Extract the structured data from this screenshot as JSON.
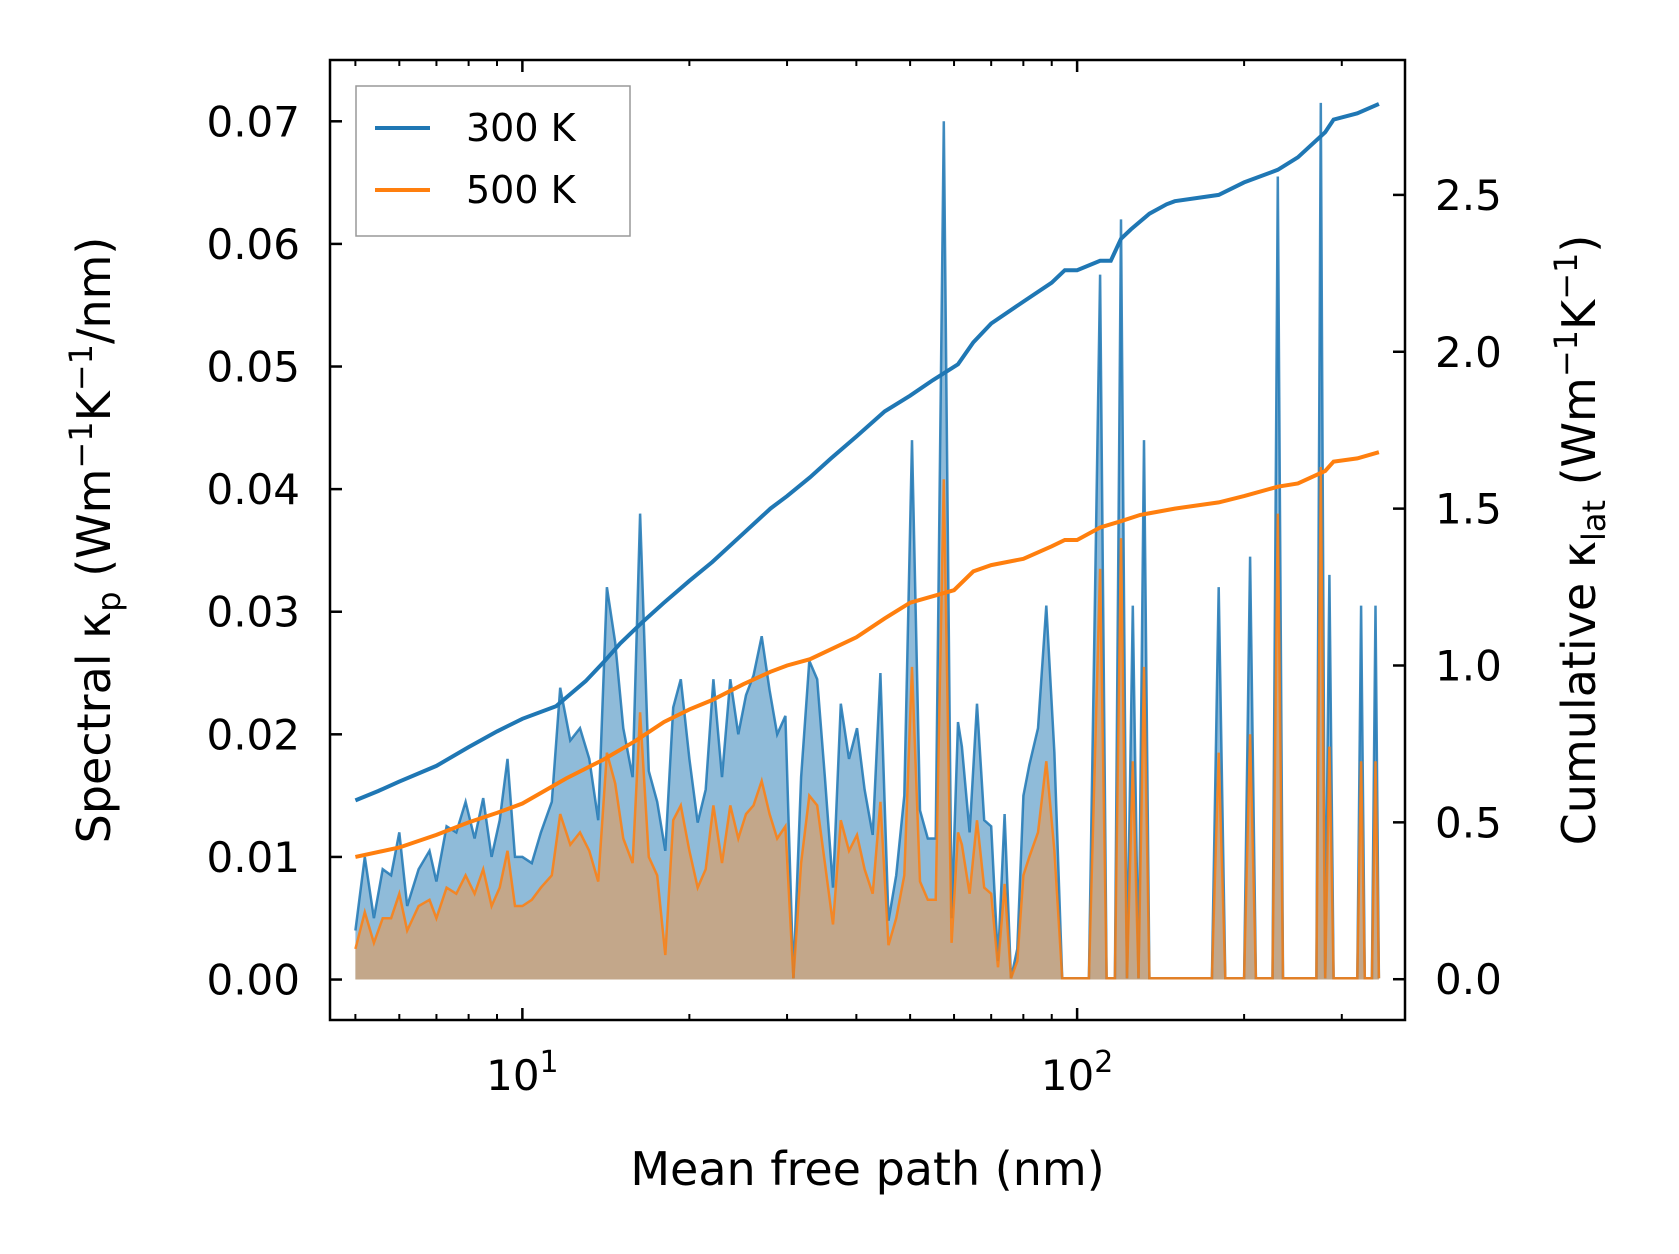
{
  "colors": {
    "series_300": "#1f77b4",
    "series_500": "#ff7f0e",
    "fill_300": "#1f77b4",
    "fill_500": "#e69a55"
  },
  "chart_data": {
    "type": "line",
    "title": "",
    "xlabel": "Mean free path (nm)",
    "ylabel_left": "Spectral κ_p (Wm⁻¹K⁻¹/nm)",
    "ylabel_right": "Cumulative κ_lat (Wm⁻¹K⁻¹)",
    "xscale": "log",
    "xlim": [
      4.5,
      390
    ],
    "ylim_left": [
      -0.0033,
      0.075
    ],
    "ylim_right": [
      -0.13,
      2.93
    ],
    "x_tick_labels": [
      "10¹",
      "10²"
    ],
    "y_left_tick_labels": [
      "0.00",
      "0.01",
      "0.02",
      "0.03",
      "0.04",
      "0.05",
      "0.06",
      "0.07"
    ],
    "y_right_tick_labels": [
      "0.0",
      "0.5",
      "1.0",
      "1.5",
      "2.0",
      "2.5"
    ],
    "legend": {
      "position": "top-left",
      "entries": [
        "300 K",
        "500 K"
      ]
    },
    "cumulative": [
      {
        "name": "300 K",
        "axis": "right",
        "x": [
          5.0,
          5.5,
          6.0,
          7.0,
          8.0,
          9.0,
          10.0,
          11.5,
          13.0,
          14.0,
          15.0,
          16.5,
          18.0,
          20.0,
          22.0,
          25.0,
          28.0,
          30.0,
          33.0,
          36.0,
          40.0,
          45.0,
          50.0,
          55.0,
          61.0,
          65.0,
          70.0,
          80.0,
          90.0,
          95.0,
          100.0,
          110.0,
          115.0,
          120.0,
          125.0,
          135.0,
          145.0,
          150.0,
          180.0,
          200.0,
          230.0,
          250.0,
          280.0,
          290.0,
          320.0,
          350.0
        ],
        "values": [
          0.57,
          0.6,
          0.63,
          0.68,
          0.74,
          0.79,
          0.83,
          0.87,
          0.95,
          1.01,
          1.07,
          1.14,
          1.2,
          1.27,
          1.33,
          1.42,
          1.5,
          1.54,
          1.6,
          1.66,
          1.73,
          1.81,
          1.86,
          1.91,
          1.96,
          2.03,
          2.09,
          2.16,
          2.22,
          2.26,
          2.26,
          2.29,
          2.29,
          2.36,
          2.39,
          2.44,
          2.47,
          2.48,
          2.5,
          2.54,
          2.58,
          2.62,
          2.7,
          2.74,
          2.76,
          2.79
        ]
      },
      {
        "name": "500 K",
        "axis": "right",
        "x": [
          5.0,
          6.0,
          7.0,
          8.0,
          9.0,
          10.0,
          12.0,
          14.0,
          16.0,
          18.0,
          20.0,
          22.0,
          25.0,
          28.0,
          30.0,
          33.0,
          40.0,
          45.0,
          50.0,
          60.0,
          65.0,
          70.0,
          80.0,
          90.0,
          95.0,
          100.0,
          110.0,
          120.0,
          130.0,
          150.0,
          180.0,
          200.0,
          230.0,
          250.0,
          280.0,
          290.0,
          320.0,
          350.0
        ],
        "values": [
          0.39,
          0.42,
          0.46,
          0.5,
          0.53,
          0.56,
          0.64,
          0.7,
          0.76,
          0.82,
          0.86,
          0.89,
          0.94,
          0.98,
          1.0,
          1.02,
          1.09,
          1.15,
          1.2,
          1.24,
          1.3,
          1.32,
          1.34,
          1.38,
          1.4,
          1.4,
          1.44,
          1.46,
          1.48,
          1.5,
          1.52,
          1.54,
          1.57,
          1.58,
          1.62,
          1.65,
          1.66,
          1.68
        ]
      }
    ],
    "spectral": [
      {
        "name": "300 K",
        "axis": "left",
        "x": [
          5.0,
          5.2,
          5.4,
          5.6,
          5.8,
          6.0,
          6.2,
          6.5,
          6.8,
          7.0,
          7.3,
          7.6,
          7.9,
          8.2,
          8.5,
          8.8,
          9.1,
          9.4,
          9.7,
          10.0,
          10.4,
          10.8,
          11.3,
          11.7,
          12.2,
          12.7,
          13.2,
          13.7,
          14.2,
          14.7,
          15.2,
          15.8,
          16.3,
          16.9,
          17.5,
          18.1,
          18.7,
          19.3,
          20.0,
          20.7,
          21.4,
          22.1,
          22.9,
          23.7,
          24.5,
          25.3,
          26.1,
          27.0,
          27.9,
          28.8,
          29.8,
          30.8,
          31.8,
          32.9,
          34.0,
          35.1,
          36.3,
          37.5,
          38.8,
          40.1,
          41.4,
          42.8,
          44.2,
          45.7,
          47.2,
          48.8,
          50.4,
          52.1,
          53.8,
          55.6,
          57.5,
          59.4,
          61.0,
          62.0,
          64.0,
          66.0,
          68.0,
          70.0,
          72.0,
          74.0,
          76.0,
          78.0,
          80.0,
          82.0,
          85.0,
          88.0,
          91.0,
          94.0,
          97.0,
          100.0,
          105.0,
          110.0,
          113.0,
          115.0,
          117.0,
          120.0,
          123.0,
          126.0,
          129.0,
          132.0,
          135.0,
          138.0,
          141.0,
          144.0,
          147.0,
          150.0,
          155.0,
          160.0,
          165.0,
          170.0,
          175.0,
          180.0,
          185.0,
          190.0,
          195.0,
          200.0,
          205.0,
          210.0,
          215.0,
          220.0,
          225.0,
          230.0,
          235.0,
          240.0,
          245.0,
          250.0,
          255.0,
          260.0,
          265.0,
          270.0,
          275.0,
          280.0,
          285.0,
          290.0,
          295.0,
          300.0,
          305.0,
          310.0,
          315.0,
          320.0,
          325.0,
          330.0,
          335.0,
          340.0,
          345.0,
          350.0
        ],
        "values": [
          0.004,
          0.01,
          0.005,
          0.009,
          0.0085,
          0.012,
          0.006,
          0.009,
          0.0105,
          0.008,
          0.0125,
          0.012,
          0.0145,
          0.0115,
          0.0148,
          0.01,
          0.013,
          0.018,
          0.01,
          0.01,
          0.0095,
          0.012,
          0.0145,
          0.0238,
          0.0195,
          0.0205,
          0.018,
          0.013,
          0.032,
          0.0275,
          0.0205,
          0.0165,
          0.038,
          0.017,
          0.0145,
          0.0105,
          0.0222,
          0.0245,
          0.018,
          0.0128,
          0.0155,
          0.0245,
          0.0165,
          0.0245,
          0.02,
          0.0232,
          0.0248,
          0.028,
          0.0236,
          0.02,
          0.0215,
          0.0001,
          0.0165,
          0.026,
          0.0245,
          0.0165,
          0.0075,
          0.0225,
          0.018,
          0.0205,
          0.0155,
          0.0118,
          0.025,
          0.0048,
          0.0085,
          0.015,
          0.044,
          0.0138,
          0.0115,
          0.0115,
          0.07,
          0.005,
          0.021,
          0.019,
          0.012,
          0.0225,
          0.013,
          0.0125,
          0.0015,
          0.0135,
          0.0001,
          0.0025,
          0.015,
          0.0175,
          0.0205,
          0.0305,
          0.0185,
          0.0001,
          0.0001,
          0.0001,
          0.0001,
          0.0575,
          0.0001,
          0.0001,
          0.0001,
          0.062,
          0.0001,
          0.0305,
          0.0001,
          0.044,
          0.0001,
          0.0001,
          0.0001,
          0.0001,
          0.0001,
          0.0001,
          0.0001,
          0.0001,
          0.0001,
          0.0001,
          0.0001,
          0.032,
          0.0001,
          0.0001,
          0.0001,
          0.0001,
          0.0345,
          0.0001,
          0.0001,
          0.0001,
          0.0001,
          0.0655,
          0.0001,
          0.0001,
          0.0001,
          0.0001,
          0.0001,
          0.0001,
          0.0001,
          0.0001,
          0.0715,
          0.0001,
          0.033,
          0.0001,
          0.0001,
          0.0001,
          0.0001,
          0.0001,
          0.0001,
          0.0001,
          0.0305,
          0.0001,
          0.0001,
          0.0001,
          0.0305,
          0.0001
        ]
      },
      {
        "name": "500 K",
        "axis": "left",
        "x": [
          5.0,
          5.2,
          5.4,
          5.6,
          5.8,
          6.0,
          6.2,
          6.5,
          6.8,
          7.0,
          7.3,
          7.6,
          7.9,
          8.2,
          8.5,
          8.8,
          9.1,
          9.4,
          9.7,
          10.0,
          10.4,
          10.8,
          11.3,
          11.7,
          12.2,
          12.7,
          13.2,
          13.7,
          14.2,
          14.7,
          15.2,
          15.8,
          16.3,
          16.9,
          17.5,
          18.1,
          18.7,
          19.3,
          20.0,
          20.7,
          21.4,
          22.1,
          22.9,
          23.7,
          24.5,
          25.3,
          26.1,
          27.0,
          27.9,
          28.8,
          29.8,
          30.8,
          31.8,
          32.9,
          34.0,
          35.1,
          36.3,
          37.5,
          38.8,
          40.1,
          41.4,
          42.8,
          44.2,
          45.7,
          47.2,
          48.8,
          50.4,
          52.1,
          53.8,
          55.6,
          57.5,
          59.4,
          61.0,
          62.0,
          64.0,
          66.0,
          68.0,
          70.0,
          72.0,
          74.0,
          76.0,
          78.0,
          80.0,
          82.0,
          85.0,
          88.0,
          91.0,
          94.0,
          97.0,
          100.0,
          105.0,
          110.0,
          113.0,
          115.0,
          117.0,
          120.0,
          123.0,
          126.0,
          129.0,
          132.0,
          135.0,
          138.0,
          141.0,
          144.0,
          147.0,
          150.0,
          155.0,
          160.0,
          165.0,
          170.0,
          175.0,
          180.0,
          185.0,
          190.0,
          195.0,
          200.0,
          205.0,
          210.0,
          215.0,
          220.0,
          225.0,
          230.0,
          235.0,
          240.0,
          245.0,
          250.0,
          255.0,
          260.0,
          265.0,
          270.0,
          275.0,
          280.0,
          285.0,
          290.0,
          295.0,
          300.0,
          305.0,
          310.0,
          315.0,
          320.0,
          325.0,
          330.0,
          335.0,
          340.0,
          345.0,
          350.0
        ],
        "values": [
          0.0025,
          0.0055,
          0.003,
          0.005,
          0.005,
          0.007,
          0.004,
          0.006,
          0.0065,
          0.005,
          0.0075,
          0.007,
          0.0085,
          0.007,
          0.009,
          0.006,
          0.0075,
          0.0105,
          0.006,
          0.006,
          0.0065,
          0.0075,
          0.0085,
          0.0135,
          0.011,
          0.012,
          0.0105,
          0.008,
          0.0185,
          0.016,
          0.0115,
          0.0095,
          0.0218,
          0.01,
          0.0085,
          0.002,
          0.013,
          0.0142,
          0.0105,
          0.0075,
          0.009,
          0.0142,
          0.0095,
          0.0142,
          0.0115,
          0.0135,
          0.0142,
          0.0162,
          0.0135,
          0.0115,
          0.0125,
          0.0001,
          0.0095,
          0.015,
          0.0142,
          0.0095,
          0.0045,
          0.013,
          0.0105,
          0.0118,
          0.009,
          0.007,
          0.0145,
          0.0028,
          0.005,
          0.0085,
          0.0255,
          0.008,
          0.0065,
          0.0065,
          0.0408,
          0.003,
          0.012,
          0.011,
          0.007,
          0.013,
          0.0075,
          0.007,
          0.001,
          0.0078,
          0.0001,
          0.0015,
          0.0085,
          0.01,
          0.012,
          0.0178,
          0.0105,
          0.0001,
          0.0001,
          0.0001,
          0.0001,
          0.0335,
          0.0001,
          0.0001,
          0.0001,
          0.036,
          0.0001,
          0.0178,
          0.0001,
          0.0255,
          0.0001,
          0.0001,
          0.0001,
          0.0001,
          0.0001,
          0.0001,
          0.0001,
          0.0001,
          0.0001,
          0.0001,
          0.0001,
          0.0185,
          0.0001,
          0.0001,
          0.0001,
          0.0001,
          0.02,
          0.0001,
          0.0001,
          0.0001,
          0.0001,
          0.038,
          0.0001,
          0.0001,
          0.0001,
          0.0001,
          0.0001,
          0.0001,
          0.0001,
          0.0001,
          0.0418,
          0.0001,
          0.019,
          0.0001,
          0.0001,
          0.0001,
          0.0001,
          0.0001,
          0.0001,
          0.0001,
          0.0178,
          0.0001,
          0.0001,
          0.0001,
          0.0178,
          0.0001
        ]
      }
    ]
  }
}
